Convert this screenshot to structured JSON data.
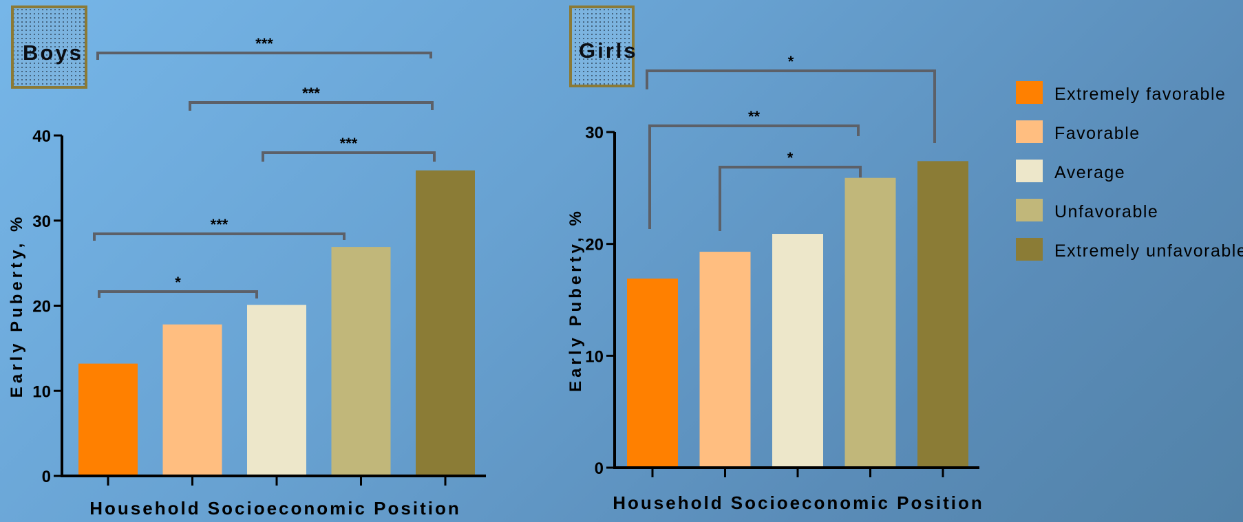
{
  "legend": {
    "position": "right",
    "items": [
      {
        "label": "Extremely favorable",
        "color": "#ff8000"
      },
      {
        "label": "Favorable",
        "color": "#ffbe80"
      },
      {
        "label": "Average",
        "color": "#ede7ca"
      },
      {
        "label": "Unfavorable",
        "color": "#c1b77a"
      },
      {
        "label": "Extremely unfavorable",
        "color": "#8b7c36"
      }
    ]
  },
  "chart_data": [
    {
      "type": "bar",
      "panel_label": "Boys",
      "xlabel": "Household Socioeconomic Position",
      "ylabel": "Early Puberty, %",
      "categories": [
        "Extremely favorable",
        "Favorable",
        "Average",
        "Unfavorable",
        "Extremely unfavorable"
      ],
      "values": [
        13.2,
        17.8,
        20.1,
        26.9,
        35.9
      ],
      "colors": [
        "#ff8000",
        "#ffbe80",
        "#ede7ca",
        "#c1b77a",
        "#8b7c36"
      ],
      "ylim": [
        0,
        40
      ],
      "yticks": [
        0,
        10,
        20,
        30,
        40
      ],
      "grid": false,
      "significance": [
        {
          "from": 0,
          "to": 4,
          "label": "***"
        },
        {
          "from": 1,
          "to": 4,
          "label": "***"
        },
        {
          "from": 2,
          "to": 4,
          "label": "***"
        },
        {
          "from": 0,
          "to": 3,
          "label": "***"
        },
        {
          "from": 0,
          "to": 2,
          "label": "*"
        }
      ]
    },
    {
      "type": "bar",
      "panel_label": "Girls",
      "xlabel": "Household Socioeconomic Position",
      "ylabel": "Early Puberty, %",
      "categories": [
        "Extremely favorable",
        "Favorable",
        "Average",
        "Unfavorable",
        "Extremely unfavorable"
      ],
      "values": [
        16.9,
        19.3,
        20.9,
        25.9,
        27.4
      ],
      "colors": [
        "#ff8000",
        "#ffbe80",
        "#ede7ca",
        "#c1b77a",
        "#8b7c36"
      ],
      "ylim": [
        0,
        30
      ],
      "yticks": [
        0,
        10,
        20,
        30
      ],
      "grid": false,
      "significance": [
        {
          "from": 0,
          "to": 4,
          "label": "*"
        },
        {
          "from": 0,
          "to": 3,
          "label": "**"
        },
        {
          "from": 1,
          "to": 3,
          "label": "*"
        }
      ]
    }
  ]
}
